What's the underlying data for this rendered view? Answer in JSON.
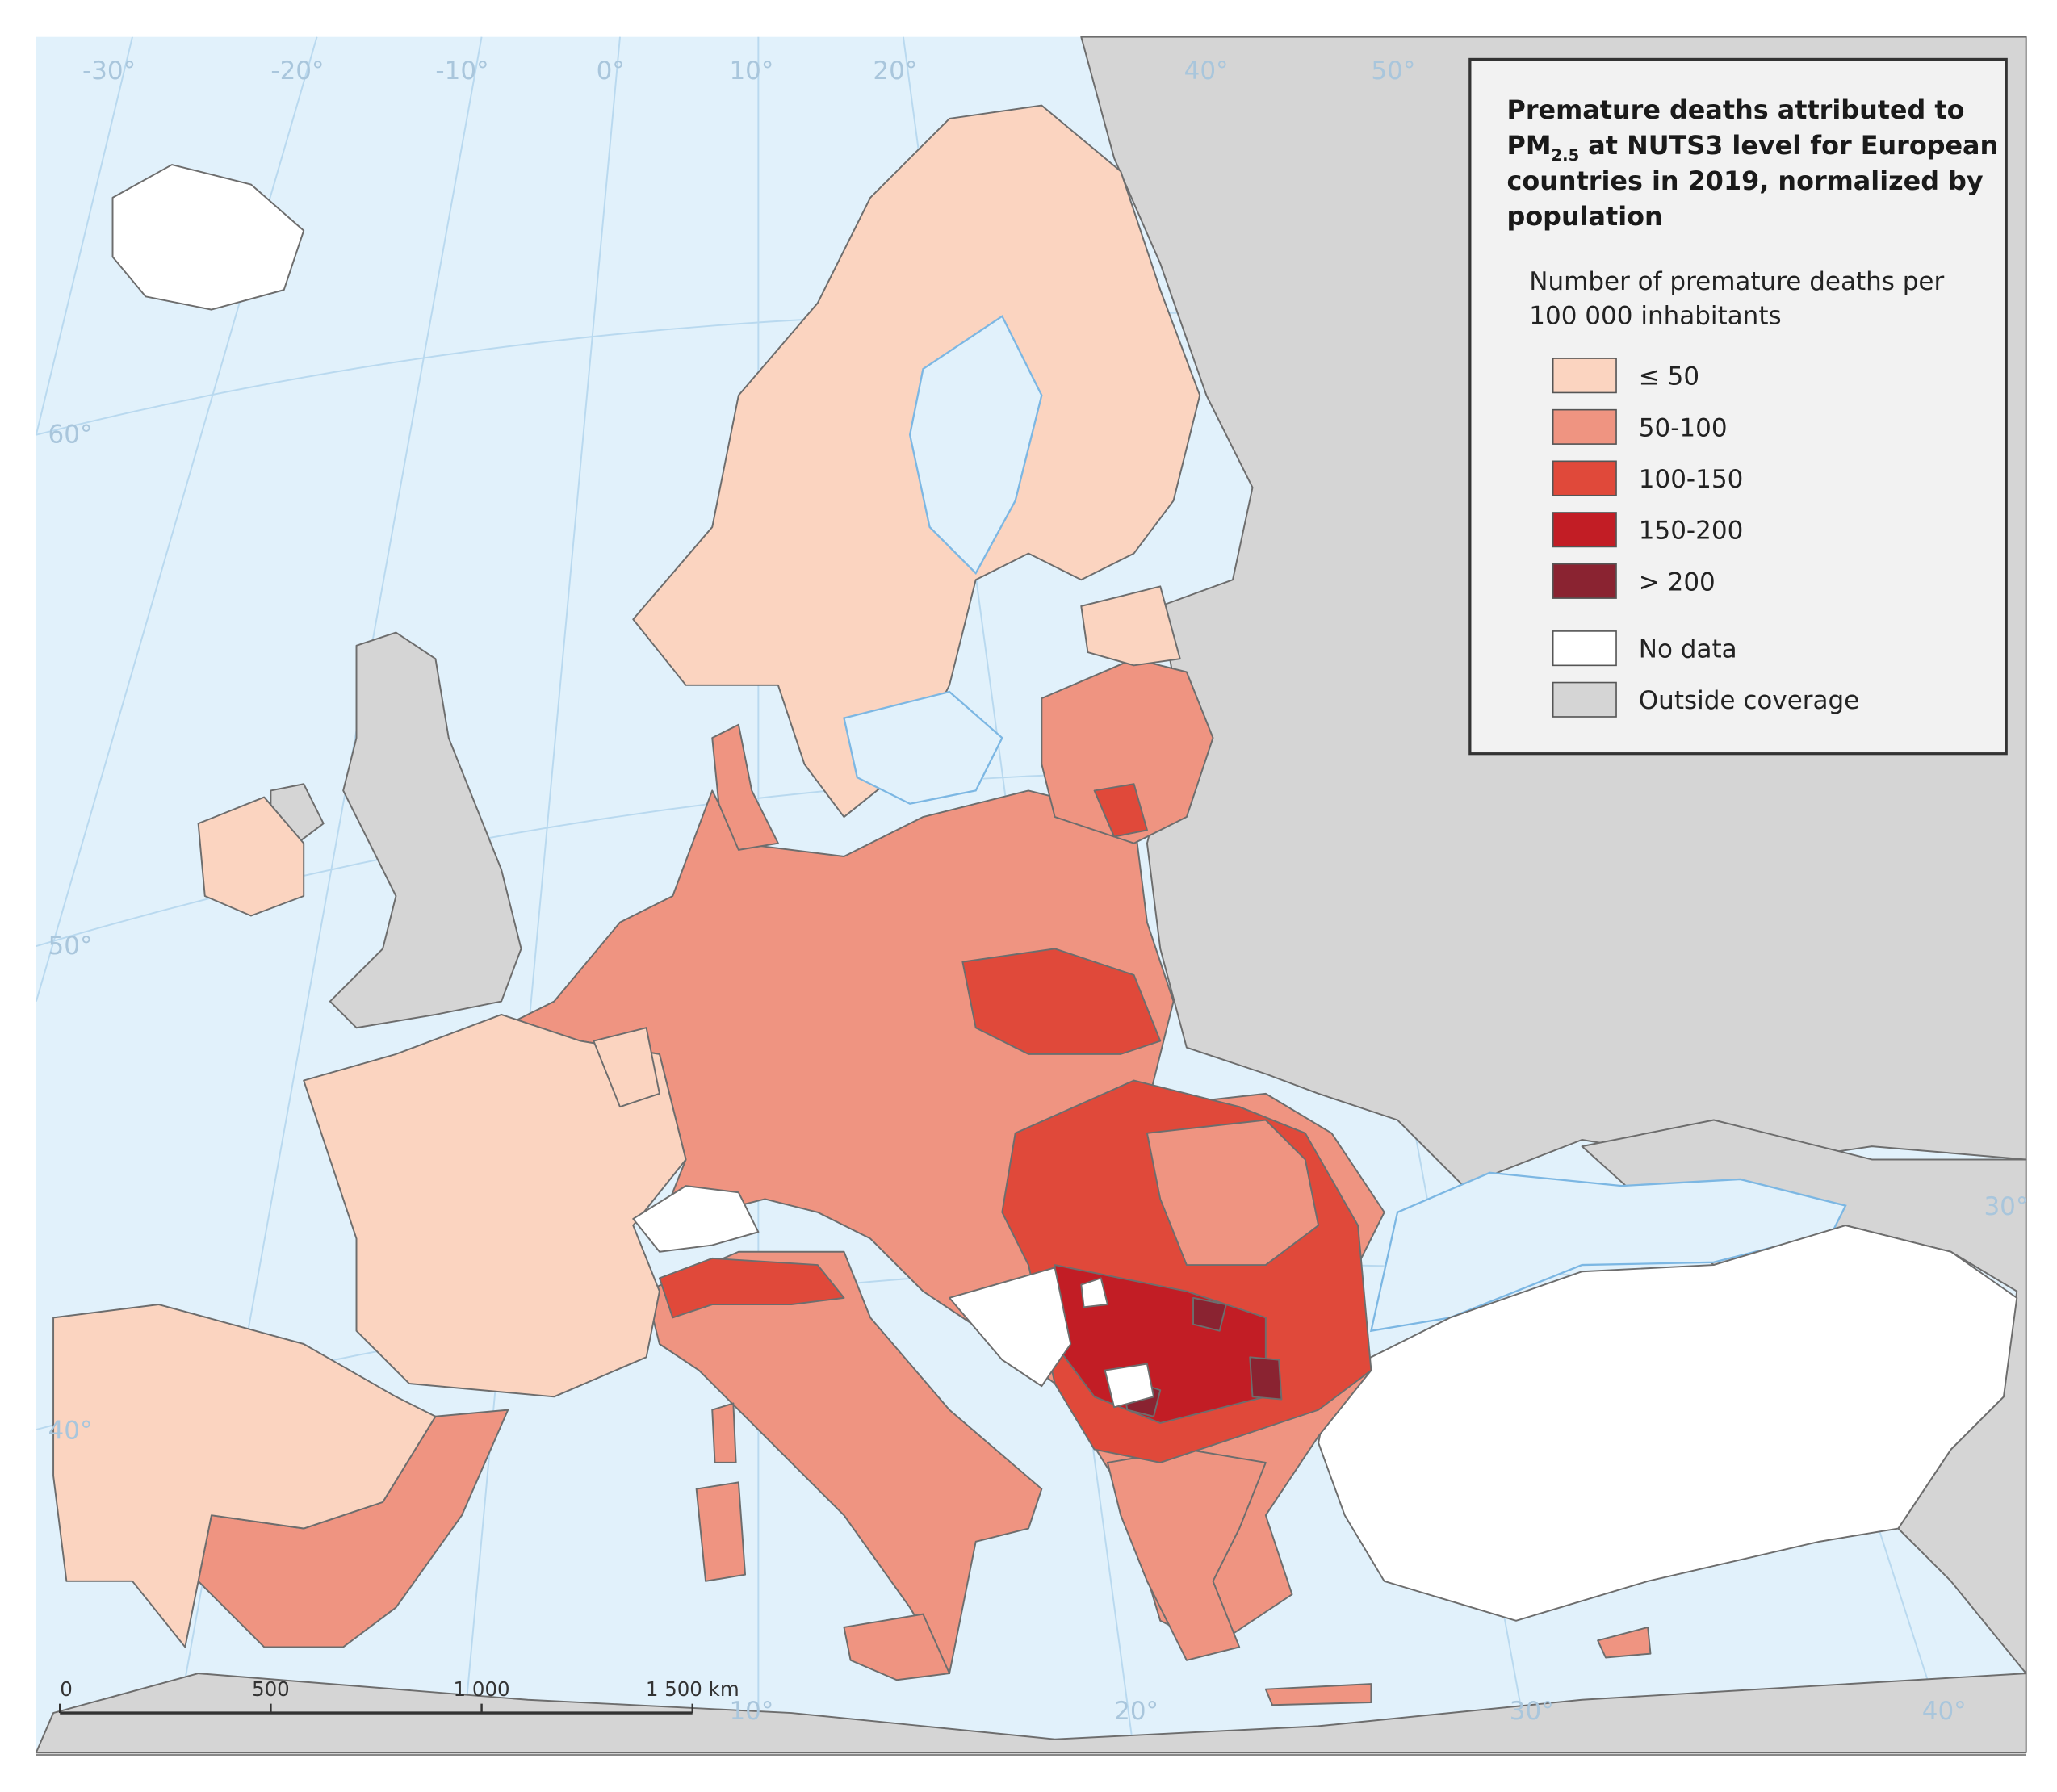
{
  "legend": {
    "title": {
      "line1": "Premature deaths attributed to",
      "pm": "PM",
      "sub": "2.5",
      "line2_rest": " at NUTS3 level for European",
      "line3": "countries in 2019, normalized by",
      "line4": "population"
    },
    "subtitle": [
      "Number of premature deaths per",
      "100 000 inhabitants"
    ],
    "classes": [
      {
        "label": "≤ 50",
        "color": "#fbd4c0"
      },
      {
        "label": "50-100",
        "color": "#ef9481"
      },
      {
        "label": "100-150",
        "color": "#e0493a"
      },
      {
        "label": "150-200",
        "color": "#c21d25"
      },
      {
        "label": "> 200",
        "color": "#8a2331"
      }
    ],
    "other": [
      {
        "label": "No data",
        "color": "#ffffff"
      },
      {
        "label": "Outside coverage",
        "color": "#d5d5d5"
      }
    ]
  },
  "graticule": {
    "top": [
      "-30°",
      "-20°",
      "-10°",
      "0°",
      "10°",
      "20°",
      "40°",
      "50°"
    ],
    "left": [
      "60°",
      "50°",
      "40°"
    ],
    "bottom": [
      "10°",
      "20°",
      "30°",
      "40°"
    ],
    "right": [
      "30°"
    ]
  },
  "scale_bar": {
    "labels": [
      "0",
      "500",
      "1 000",
      "1 500 km"
    ]
  }
}
